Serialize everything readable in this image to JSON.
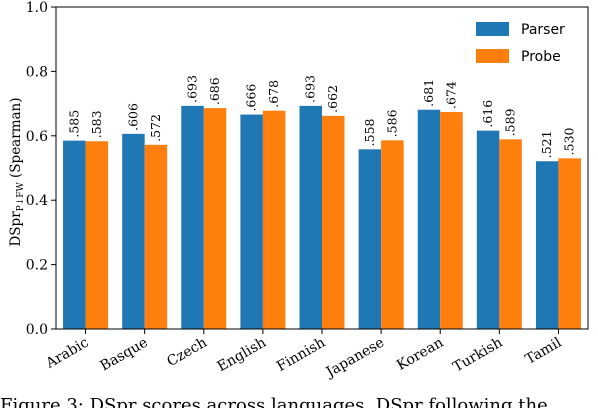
{
  "chart_data": {
    "type": "bar",
    "title": "",
    "xlabel": "",
    "ylabel": "DSpr",
    "ylabel_subscript": "P↓FW",
    "ylabel_suffix": " (Spearman)",
    "ylim": [
      0,
      1.0
    ],
    "yticks": [
      "0.0",
      "0.2",
      "0.4",
      "0.6",
      "0.8",
      "1.0"
    ],
    "grid": false,
    "legend_position": "top-right",
    "categories": [
      "Arabic",
      "Basque",
      "Czech",
      "English",
      "Finnish",
      "Japanese",
      "Korean",
      "Turkish",
      "Tamil"
    ],
    "series": [
      {
        "name": "Parser",
        "color": "#1f77b4",
        "values": [
          0.585,
          0.606,
          0.693,
          0.666,
          0.693,
          0.558,
          0.681,
          0.616,
          0.521
        ],
        "labels": [
          ".585",
          ".606",
          ".693",
          ".666",
          ".693",
          ".558",
          ".681",
          ".616",
          ".521"
        ]
      },
      {
        "name": "Probe",
        "color": "#ff7f0e",
        "values": [
          0.583,
          0.572,
          0.686,
          0.678,
          0.662,
          0.586,
          0.674,
          0.589,
          0.53
        ],
        "labels": [
          ".583",
          ".572",
          ".686",
          ".678",
          ".662",
          ".586",
          ".674",
          ".589",
          ".530"
        ]
      }
    ]
  },
  "caption": "Figure 3: DSpr scores across languages. DSpr following the"
}
